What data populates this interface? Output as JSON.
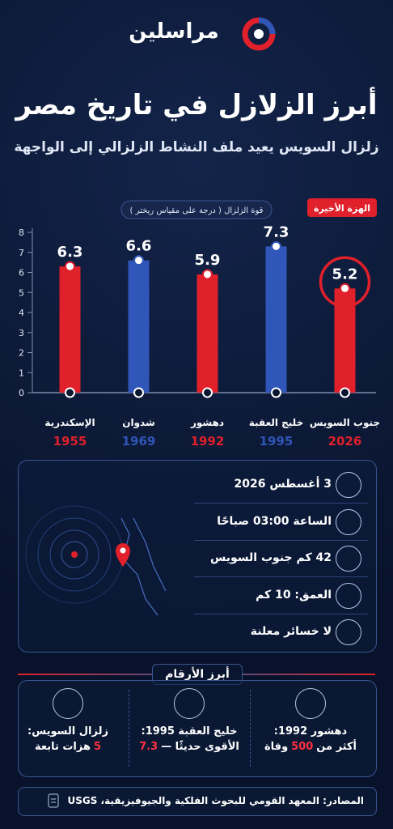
{
  "header": {
    "logo": "مراسلين",
    "title": "أبرز الزلازل في تاريخ مصر",
    "subtitle": "زلزال السويس يعيد ملف النشاط الزلزالي إلى الواجهة"
  },
  "chart_data": {
    "type": "bar",
    "y_label": "قوة الزلزال ( درجة على مقياس ريختر )",
    "badge": "الهزة الأخيرة",
    "categories": [
      "الإسكندرية",
      "شدوان",
      "دهشور",
      "خليج العقبة",
      "جنوب السويس"
    ],
    "years": [
      "1955",
      "1969",
      "1992",
      "1995",
      "2026"
    ],
    "values": [
      6.3,
      6.6,
      5.9,
      7.3,
      5.2
    ],
    "colors": [
      "#e0202b",
      "#2f56b8",
      "#e0202b",
      "#2f56b8",
      "#e0202b"
    ],
    "ylim": [
      0,
      8
    ],
    "yticks": [
      0,
      1,
      2,
      3,
      4,
      5,
      6,
      7,
      8
    ],
    "grid": false
  },
  "details": [
    "3 أغسطس 2026",
    "الساعة 03:00 صباحًا",
    "42 كم جنوب السويس",
    "العمق: 10 كم",
    "لا خسائر معلنة"
  ],
  "stats": {
    "title": "أبرز الأرقام",
    "items": [
      {
        "heading": "دهشور 1992:",
        "parts": [
          "أكثر من",
          "500",
          "وفاة"
        ]
      },
      {
        "heading": "خليج العقبة 1995:",
        "parts": [
          "الأقوى حديثًا —",
          "7.3"
        ]
      },
      {
        "heading": "زلزال السويس:",
        "parts": [
          "5",
          "هزات تابعة"
        ]
      }
    ]
  },
  "source": "المصادر: المعهد القومي للبحوث الفلكية والجيوفيزيقية، USGS"
}
